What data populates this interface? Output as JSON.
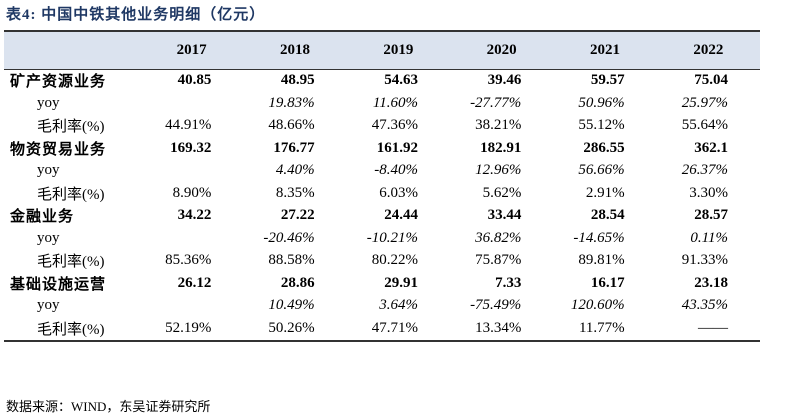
{
  "title": "表4:  中国中铁其他业务明细（亿元）",
  "columns": [
    "",
    "2017",
    "2018",
    "2019",
    "2020",
    "2021",
    "2022"
  ],
  "rows": [
    {
      "type": "main",
      "label": "矿产资源业务",
      "values": [
        "40.85",
        "48.95",
        "54.63",
        "39.46",
        "59.57",
        "75.04"
      ]
    },
    {
      "type": "yoy",
      "label": "yoy",
      "values": [
        "",
        "19.83%",
        "11.60%",
        "-27.77%",
        "50.96%",
        "25.97%"
      ]
    },
    {
      "type": "margin",
      "label": "毛利率(%)",
      "values": [
        "44.91%",
        "48.66%",
        "47.36%",
        "38.21%",
        "55.12%",
        "55.64%"
      ]
    },
    {
      "type": "main",
      "label": "物资贸易业务",
      "values": [
        "169.32",
        "176.77",
        "161.92",
        "182.91",
        "286.55",
        "362.1"
      ]
    },
    {
      "type": "yoy",
      "label": "yoy",
      "values": [
        "",
        "4.40%",
        "-8.40%",
        "12.96%",
        "56.66%",
        "26.37%"
      ]
    },
    {
      "type": "margin",
      "label": "毛利率(%)",
      "values": [
        "8.90%",
        "8.35%",
        "6.03%",
        "5.62%",
        "2.91%",
        "3.30%"
      ]
    },
    {
      "type": "main",
      "label": "金融业务",
      "values": [
        "34.22",
        "27.22",
        "24.44",
        "33.44",
        "28.54",
        "28.57"
      ]
    },
    {
      "type": "yoy",
      "label": "yoy",
      "values": [
        "",
        "-20.46%",
        "-10.21%",
        "36.82%",
        "-14.65%",
        "0.11%"
      ]
    },
    {
      "type": "margin",
      "label": "毛利率(%)",
      "values": [
        "85.36%",
        "88.58%",
        "80.22%",
        "75.87%",
        "89.81%",
        "91.33%"
      ]
    },
    {
      "type": "main",
      "label": "基础设施运营",
      "values": [
        "26.12",
        "28.86",
        "29.91",
        "7.33",
        "16.17",
        "23.18"
      ]
    },
    {
      "type": "yoy",
      "label": "yoy",
      "values": [
        "",
        "10.49%",
        "3.64%",
        "-75.49%",
        "120.60%",
        "43.35%"
      ]
    },
    {
      "type": "margin",
      "label": "毛利率(%)",
      "values": [
        "52.19%",
        "50.26%",
        "47.71%",
        "13.34%",
        "11.77%",
        "——"
      ]
    }
  ],
  "source": "数据来源：WIND，东吴证券研究所",
  "colors": {
    "title": "#1f3864",
    "header_bg": "#dbe3ef"
  }
}
